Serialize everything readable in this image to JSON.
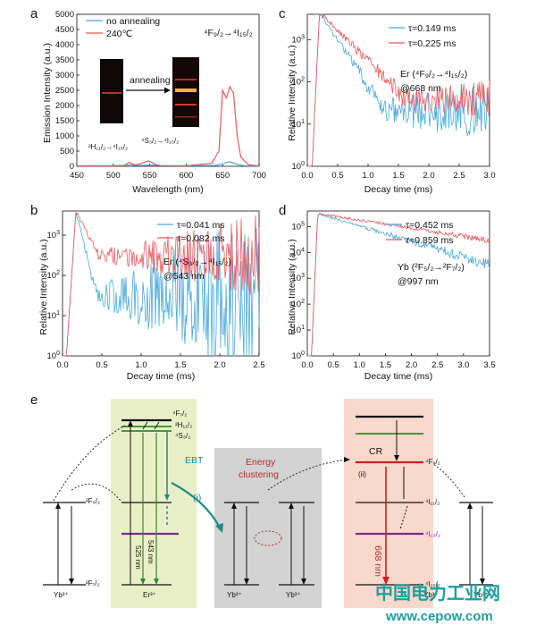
{
  "panel_labels": {
    "a": "a",
    "b": "b",
    "c": "c",
    "d": "d",
    "e": "e"
  },
  "colors": {
    "blue": "#4aa8dc",
    "red": "#e8595b",
    "green": "#2e8b2e",
    "purple": "#7b2a8c",
    "teal": "#1f8a8a",
    "darkred": "#b03030"
  },
  "chart_data": [
    {
      "id": "a",
      "type": "line",
      "xlabel": "Wavelength (nm)",
      "ylabel": "Emission Intensity (a.u.)",
      "xlim": [
        450,
        700
      ],
      "ylim": [
        0,
        5000
      ],
      "xticks": [
        "450",
        "500",
        "550",
        "600",
        "650",
        "700"
      ],
      "yticks": [
        "0",
        "500",
        "1000",
        "1500",
        "2000",
        "2500",
        "3000",
        "3500",
        "4000",
        "4500",
        "5000"
      ],
      "series": [
        {
          "name": "no annealing",
          "color": "#4aa8dc",
          "x": [
            450,
            500,
            515,
            522,
            530,
            540,
            548,
            555,
            565,
            600,
            640,
            650,
            655,
            660,
            665,
            670,
            680,
            700
          ],
          "y": [
            20,
            20,
            25,
            50,
            30,
            30,
            40,
            40,
            25,
            20,
            30,
            80,
            120,
            150,
            110,
            60,
            20,
            15
          ]
        },
        {
          "name": "240℃",
          "color": "#e8595b",
          "x": [
            450,
            500,
            515,
            522,
            530,
            540,
            548,
            553,
            558,
            565,
            600,
            635,
            645,
            650,
            655,
            660,
            665,
            670,
            675,
            685,
            700
          ],
          "y": [
            10,
            15,
            30,
            130,
            40,
            110,
            180,
            130,
            60,
            20,
            15,
            100,
            500,
            2500,
            2250,
            2620,
            2400,
            1000,
            300,
            60,
            10
          ]
        }
      ],
      "annotations": {
        "ann1": "4F9/2→4I15/2",
        "ann2": "2H11/2→4I15/2",
        "ann3": "4S3/2→4I15/2",
        "inset": "annealing"
      }
    },
    {
      "id": "b",
      "type": "line",
      "log_y": true,
      "xlabel": "Decay time (ms)",
      "ylabel": "Relative Intensity (a.u.)",
      "xlim": [
        0,
        2.5
      ],
      "ylim_exp": [
        0,
        3.6
      ],
      "xticks": [
        "0.0",
        "0.5",
        "1.0",
        "1.5",
        "2.0",
        "2.5"
      ],
      "series": [
        {
          "name": "τ=0.041 ms",
          "color": "#4aa8dc",
          "tau": 0.041,
          "floor": 1.5
        },
        {
          "name": "τ=0.082 ms",
          "color": "#e8595b",
          "tau": 0.082,
          "floor": 2.5
        }
      ],
      "peak": {
        "x": 0.17,
        "y": 3.6
      },
      "note": "Er (4S3/2→4I15/2) @543 nm"
    },
    {
      "id": "c",
      "type": "line",
      "log_y": true,
      "xlabel": "Decay time (ms)",
      "ylabel": "Relative Intensity (a.u.)",
      "xlim": [
        0,
        3.0
      ],
      "ylim_exp": [
        0,
        3.6
      ],
      "xticks": [
        "0.0",
        "0.5",
        "1.0",
        "1.5",
        "2.0",
        "2.5",
        "3.0"
      ],
      "series": [
        {
          "name": "τ=0.149 ms",
          "color": "#4aa8dc",
          "tau": 0.149,
          "floor": 1.3
        },
        {
          "name": "τ=0.225 ms",
          "color": "#e8595b",
          "tau": 0.225,
          "floor": 1.6
        }
      ],
      "peak": {
        "x": 0.2,
        "y": 3.65
      },
      "note": "Er (4F9/2→4I15/2) @668 nm"
    },
    {
      "id": "d",
      "type": "line",
      "log_y": true,
      "xlabel": "Decay time (ms)",
      "ylabel": "Relative Intensity (a.u.)",
      "xlim": [
        0,
        3.5
      ],
      "ylim_exp": [
        0,
        5.6
      ],
      "xticks": [
        "0.0",
        "0.5",
        "1.0",
        "1.5",
        "2.0",
        "2.5",
        "3.0",
        "3.5"
      ],
      "series": [
        {
          "name": "τ=0.452 ms",
          "color": "#4aa8dc",
          "tau": 0.452,
          "floor": 1.2
        },
        {
          "name": "τ=0.859 ms",
          "color": "#e8595b",
          "tau": 0.859,
          "floor": 1.4
        }
      ],
      "peak": {
        "x": 0.2,
        "y": 5.5
      },
      "note": "Yb (2F5/2→2F7/2) @997 nm"
    }
  ],
  "diagram": {
    "yb_left": "Yb³⁺",
    "er": "Er³⁺",
    "yb_mid1": "Yb³⁺",
    "yb_mid2": "Yb³⁺",
    "yb_right1": "Yb³⁺",
    "yb_right2": "Yb³⁺",
    "f52": "²F₅/₂",
    "f72": "²F₇/₂",
    "er_f72": "⁴F₇/₂",
    "er_h112": "²H₁₁/₂",
    "er_s32": "⁴S₃/₂",
    "ebt": "EBT",
    "i": "(i)",
    "energy": "Energy",
    "clustering": "clustering",
    "cr": "CR",
    "ii": "(ii)",
    "f92": "⁴F₉/₂",
    "i112": "⁴I₁₁/₂",
    "i132": "⁴I₁₃/₂",
    "i152": "⁴I₁₅/₂",
    "nm543": "543 nm",
    "nm525": "525 nm",
    "nm668": "668 nm"
  },
  "watermark": {
    "line1": "中国电力工业网",
    "line2": "www.cepow.com"
  }
}
